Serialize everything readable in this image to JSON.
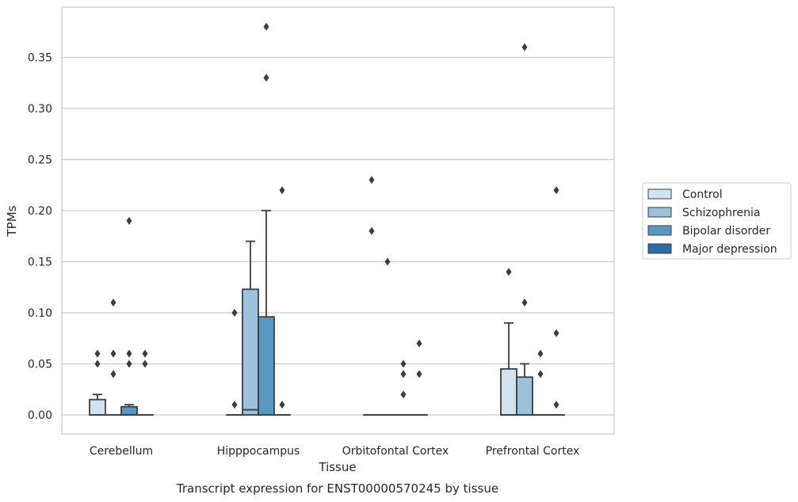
{
  "chart_data": {
    "type": "box",
    "caption": "Transcript expression for ENST00000570245 by tissue",
    "xlabel": "Tissue",
    "ylabel": "TPMs",
    "ylim": [
      -0.018,
      0.4
    ],
    "yticks": [
      0.0,
      0.05,
      0.1,
      0.15,
      0.2,
      0.25,
      0.3,
      0.35
    ],
    "ytick_labels": [
      "0.00",
      "0.05",
      "0.10",
      "0.15",
      "0.20",
      "0.25",
      "0.30",
      "0.35"
    ],
    "grid": true,
    "legend_position": "right",
    "categories": [
      "Cerebellum",
      "Hipppocampus",
      "Orbitofontal Cortex",
      "Prefrontal Cortex"
    ],
    "series": [
      {
        "name": "Control",
        "color": "#d1e2f0",
        "boxes": [
          {
            "q1": 0.0,
            "median": 0.0,
            "q3": 0.015,
            "whisker_low": 0.0,
            "whisker_high": 0.02,
            "outliers": [
              0.05,
              0.06
            ]
          },
          {
            "q1": 0.0,
            "median": 0.0,
            "q3": 0.0,
            "whisker_low": 0.0,
            "whisker_high": 0.0,
            "outliers": [
              0.01,
              0.1
            ]
          },
          {
            "q1": 0.0,
            "median": 0.0,
            "q3": 0.0,
            "whisker_low": 0.0,
            "whisker_high": 0.0,
            "outliers": [
              0.18,
              0.23
            ]
          },
          {
            "q1": 0.0,
            "median": 0.0,
            "q3": 0.045,
            "whisker_low": 0.0,
            "whisker_high": 0.09,
            "outliers": [
              0.14
            ]
          }
        ]
      },
      {
        "name": "Schizophrenia",
        "color": "#9ac2dc",
        "boxes": [
          {
            "q1": 0.0,
            "median": 0.0,
            "q3": 0.0,
            "whisker_low": 0.0,
            "whisker_high": 0.0,
            "outliers": [
              0.04,
              0.06,
              0.11
            ]
          },
          {
            "q1": 0.0,
            "median": 0.005,
            "q3": 0.123,
            "whisker_low": 0.0,
            "whisker_high": 0.17,
            "outliers": []
          },
          {
            "q1": 0.0,
            "median": 0.0,
            "q3": 0.0,
            "whisker_low": 0.0,
            "whisker_high": 0.0,
            "outliers": [
              0.15
            ]
          },
          {
            "q1": 0.0,
            "median": 0.0,
            "q3": 0.037,
            "whisker_low": 0.0,
            "whisker_high": 0.05,
            "outliers": [
              0.11,
              0.36
            ]
          }
        ]
      },
      {
        "name": "Bipolar disorder",
        "color": "#5a98c4",
        "boxes": [
          {
            "q1": 0.0,
            "median": 0.0,
            "q3": 0.008,
            "whisker_low": 0.0,
            "whisker_high": 0.01,
            "outliers": [
              0.05,
              0.06,
              0.19
            ]
          },
          {
            "q1": 0.0,
            "median": 0.0,
            "q3": 0.096,
            "whisker_low": 0.0,
            "whisker_high": 0.2,
            "outliers": [
              0.33,
              0.38
            ]
          },
          {
            "q1": 0.0,
            "median": 0.0,
            "q3": 0.0,
            "whisker_low": 0.0,
            "whisker_high": 0.0,
            "outliers": [
              0.02,
              0.04,
              0.05
            ]
          },
          {
            "q1": 0.0,
            "median": 0.0,
            "q3": 0.0,
            "whisker_low": 0.0,
            "whisker_high": 0.0,
            "outliers": [
              0.04,
              0.06
            ]
          }
        ]
      },
      {
        "name": "Major depression",
        "color": "#2b6ca6",
        "boxes": [
          {
            "q1": 0.0,
            "median": 0.0,
            "q3": 0.0,
            "whisker_low": 0.0,
            "whisker_high": 0.0,
            "outliers": [
              0.05,
              0.06
            ]
          },
          {
            "q1": 0.0,
            "median": 0.0,
            "q3": 0.0,
            "whisker_low": 0.0,
            "whisker_high": 0.0,
            "outliers": [
              0.01,
              0.22
            ]
          },
          {
            "q1": 0.0,
            "median": 0.0,
            "q3": 0.0,
            "whisker_low": 0.0,
            "whisker_high": 0.0,
            "outliers": [
              0.04,
              0.07
            ]
          },
          {
            "q1": 0.0,
            "median": 0.0,
            "q3": 0.0,
            "whisker_low": 0.0,
            "whisker_high": 0.0,
            "outliers": [
              0.01,
              0.08,
              0.22
            ]
          }
        ]
      }
    ]
  }
}
